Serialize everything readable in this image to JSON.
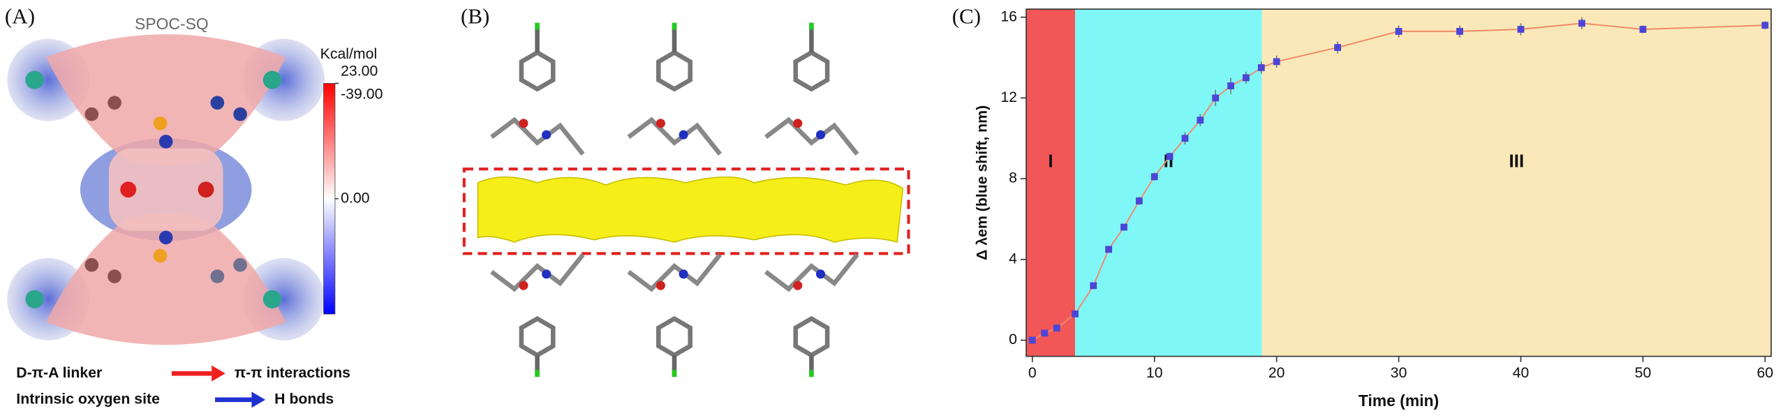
{
  "panel_a": {
    "label": "(A)",
    "title": "SPOC-SQ",
    "colorbar": {
      "title": "Kcal/mol",
      "ticks": [
        {
          "value": 23,
          "label": "23.00"
        },
        {
          "value": 0,
          "label": "0.00"
        },
        {
          "value": -39,
          "label": "-39.00"
        }
      ],
      "colors": [
        "#0000ff",
        "#ffffff",
        "#ff0000"
      ]
    },
    "legend": [
      "D-π-A linker",
      "π-π interactions",
      "Intrinsic oxygen site",
      "H bonds"
    ]
  },
  "panel_b": {
    "label": "(B)"
  },
  "chart_data": {
    "type": "line",
    "label": "(C)",
    "xlabel": "Time (min)",
    "ylabel": "Δ λem (blue shift, nm)",
    "xlim": [
      -0.5,
      60.5
    ],
    "ylim": [
      -0.8,
      16.4
    ],
    "xticks": [
      0,
      10,
      20,
      30,
      40,
      50,
      60
    ],
    "yticks": [
      0,
      4,
      8,
      12,
      16
    ],
    "regions": [
      {
        "label": "I",
        "start": -0.5,
        "end": 3.5,
        "color": "#f25757"
      },
      {
        "label": "II",
        "start": 3.5,
        "end": 18.8,
        "color": "#80f7f7"
      },
      {
        "label": "III",
        "start": 18.8,
        "end": 60.5,
        "color": "#fbe8b8"
      }
    ],
    "x": [
      0,
      1,
      2,
      3.5,
      5,
      6.25,
      7.5,
      8.75,
      10,
      11.25,
      12.5,
      13.75,
      15,
      16.25,
      17.5,
      18.75,
      20,
      25,
      30,
      35,
      40,
      45,
      50,
      60
    ],
    "values": [
      0,
      0.35,
      0.6,
      1.3,
      2.7,
      4.5,
      5.6,
      6.9,
      8.1,
      9.1,
      10.0,
      10.9,
      12.0,
      12.6,
      13.0,
      13.5,
      13.8,
      14.5,
      15.3,
      15.3,
      15.4,
      15.7,
      15.4,
      15.6
    ],
    "errors": [
      0.1,
      0.1,
      0.1,
      0.1,
      0.1,
      0.1,
      0.1,
      0.2,
      0.2,
      0.2,
      0.3,
      0.3,
      0.4,
      0.4,
      0.3,
      0.3,
      0.3,
      0.3,
      0.3,
      0.3,
      0.3,
      0.3,
      0.2,
      0.2
    ],
    "line_color": "#f08a6a",
    "marker_color": "#4b46d6"
  }
}
